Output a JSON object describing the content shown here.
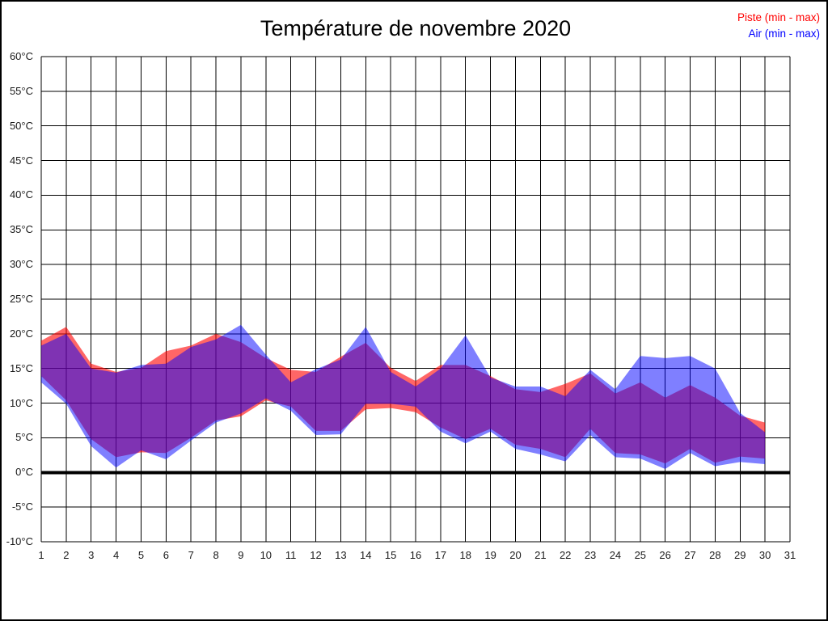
{
  "window": {
    "title": "Température de novembre 2020"
  },
  "legend": {
    "position": "top-right",
    "items": [
      {
        "label": "Piste (min - max)",
        "color": "#ff0000"
      },
      {
        "label": "Air (min - max)",
        "color": "#0000ff"
      }
    ]
  },
  "chart_data": {
    "type": "area",
    "subtype": "min-max-band",
    "title": "Température de novembre 2020",
    "xlabel": "",
    "ylabel": "",
    "x": [
      1,
      2,
      3,
      4,
      5,
      6,
      7,
      8,
      9,
      10,
      11,
      12,
      13,
      14,
      15,
      16,
      17,
      18,
      19,
      20,
      21,
      22,
      23,
      24,
      25,
      26,
      27,
      28,
      29,
      30
    ],
    "xlim": [
      1,
      31
    ],
    "x_tick_labels": [
      "1",
      "2",
      "3",
      "4",
      "5",
      "6",
      "7",
      "8",
      "9",
      "10",
      "11",
      "12",
      "13",
      "14",
      "15",
      "16",
      "17",
      "18",
      "19",
      "20",
      "21",
      "22",
      "23",
      "24",
      "25",
      "26",
      "27",
      "28",
      "29",
      "30",
      "31"
    ],
    "ylim": [
      -10,
      60
    ],
    "y_step": 5,
    "y_unit": "°C",
    "grid": true,
    "zero_line_emphasized": true,
    "legend_position": "top-right",
    "series": [
      {
        "name": "Piste (min - max)",
        "color": "#ff0000",
        "fill_alpha": 0.6,
        "max": [
          19.0,
          21.0,
          15.7,
          14.5,
          15.1,
          17.5,
          18.3,
          20.0,
          18.8,
          16.5,
          14.8,
          14.5,
          16.7,
          18.7,
          15.1,
          13.2,
          15.5,
          15.5,
          13.9,
          12.0,
          11.6,
          12.8,
          14.3,
          11.4,
          13.0,
          10.8,
          12.6,
          10.8,
          8.2,
          7.2
        ],
        "min": [
          13.9,
          10.4,
          4.8,
          2.2,
          2.9,
          2.8,
          5.0,
          7.5,
          8.1,
          10.4,
          9.5,
          6.0,
          6.0,
          9.1,
          9.3,
          8.7,
          6.5,
          4.8,
          6.3,
          4.0,
          3.4,
          2.2,
          6.3,
          2.8,
          2.6,
          1.3,
          3.4,
          1.4,
          2.3,
          2.0
        ]
      },
      {
        "name": "Air (min - max)",
        "color": "#0000ff",
        "fill_alpha": 0.5,
        "max": [
          18.3,
          20.0,
          15.0,
          14.4,
          15.5,
          15.7,
          18.1,
          19.2,
          21.3,
          17.0,
          13.0,
          14.9,
          16.3,
          21.0,
          14.5,
          12.4,
          15.0,
          19.8,
          13.7,
          12.4,
          12.4,
          11.0,
          14.8,
          12.0,
          16.8,
          16.5,
          16.8,
          15.0,
          8.6,
          5.8
        ],
        "min": [
          13.0,
          9.9,
          3.8,
          0.7,
          3.2,
          1.9,
          4.6,
          7.2,
          8.5,
          10.7,
          8.9,
          5.4,
          5.5,
          9.9,
          9.9,
          9.5,
          5.9,
          4.2,
          5.9,
          3.4,
          2.6,
          1.6,
          5.4,
          2.2,
          2.0,
          0.5,
          2.8,
          0.9,
          1.5,
          1.2
        ]
      }
    ]
  }
}
